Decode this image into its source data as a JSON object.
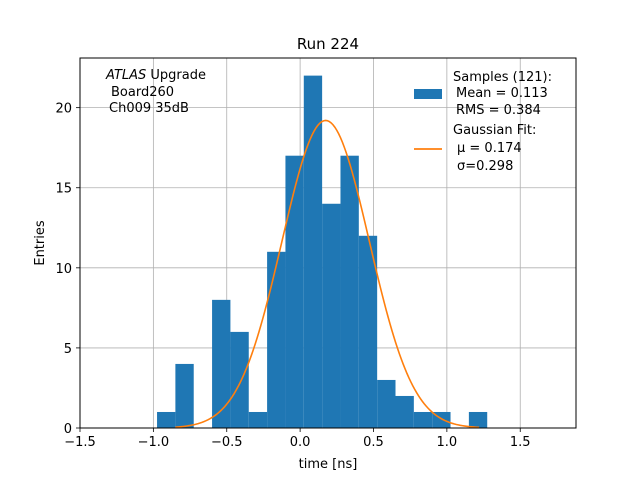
{
  "chart_data": {
    "type": "bar",
    "title": "Run 224",
    "xlabel": "time [ns]",
    "ylabel": "Entries",
    "xlim": [
      -1.5,
      1.88
    ],
    "ylim": [
      0,
      23.1
    ],
    "grid": true,
    "xticks": [
      -1.5,
      -1.0,
      -0.5,
      0.0,
      0.5,
      1.0,
      1.5
    ],
    "xtick_labels": [
      "−1.5",
      "−1.0",
      "−0.5",
      "0.0",
      "0.5",
      "1.0",
      "1.5"
    ],
    "yticks": [
      0,
      5,
      10,
      15,
      20
    ],
    "ytick_labels": [
      "0",
      "5",
      "10",
      "15",
      "20"
    ],
    "histogram": {
      "name": "Samples (121):",
      "color": "#1f77b4",
      "bin_edges": [
        -0.975,
        -0.85,
        -0.725,
        -0.6,
        -0.475,
        -0.35,
        -0.225,
        -0.1,
        0.025,
        0.15,
        0.275,
        0.4,
        0.525,
        0.65,
        0.775,
        0.9,
        1.025,
        1.15,
        1.275,
        1.4
      ],
      "counts": [
        1,
        4,
        0,
        8,
        6,
        1,
        11,
        17,
        22,
        14,
        17,
        12,
        3,
        2,
        1,
        1,
        0,
        1,
        0
      ]
    },
    "histogram_stats": {
      "mean_label": "Mean = 0.113",
      "rms_label": "RMS = 0.384"
    },
    "gaussian_fit": {
      "name": "Gaussian Fit:",
      "color": "#ff7f0e",
      "mu": 0.174,
      "sigma": 0.298,
      "amplitude": 19.2,
      "x_range": [
        -0.85,
        1.22
      ],
      "mu_label": "μ = 0.174",
      "sigma_label": "σ=0.298"
    },
    "annotation": {
      "line1_italic": "ATLAS",
      "line1_rest": " Upgrade",
      "line2": "Board260",
      "line3": "Ch009 35dB"
    },
    "legend_position": "top-right"
  }
}
